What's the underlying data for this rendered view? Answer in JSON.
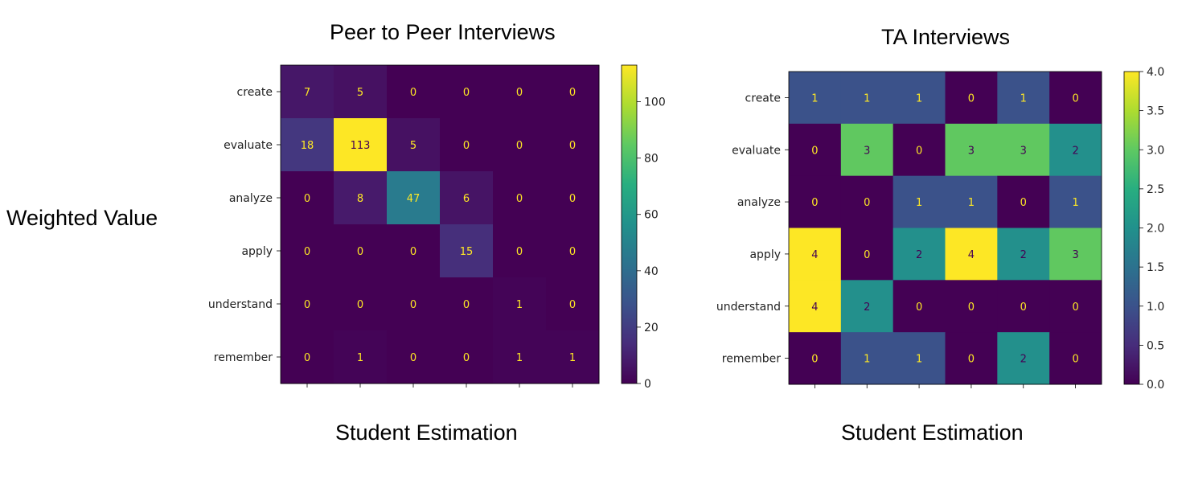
{
  "figure": {
    "ylabel": "Weighted Value"
  },
  "chart_data": [
    {
      "type": "heatmap",
      "title": "Peer to Peer Interviews",
      "xlabel": "Student Estimation",
      "row_labels": [
        "create",
        "evaluate",
        "analyze",
        "apply",
        "understand",
        "remember"
      ],
      "col_count": 6,
      "values": [
        [
          7,
          5,
          0,
          0,
          0,
          0
        ],
        [
          18,
          113,
          5,
          0,
          0,
          0
        ],
        [
          0,
          8,
          47,
          6,
          0,
          0
        ],
        [
          0,
          0,
          0,
          15,
          0,
          0
        ],
        [
          0,
          0,
          0,
          0,
          1,
          0
        ],
        [
          0,
          1,
          0,
          0,
          1,
          1
        ]
      ],
      "vmin": 0,
      "vmax": 113,
      "colormap": "viridis",
      "colorbar_ticks": [
        0,
        20,
        40,
        60,
        80,
        100
      ],
      "colorbar_tick_labels": [
        "0",
        "20",
        "40",
        "60",
        "80",
        "100"
      ]
    },
    {
      "type": "heatmap",
      "title": "TA Interviews",
      "xlabel": "Student Estimation",
      "row_labels": [
        "create",
        "evaluate",
        "analyze",
        "apply",
        "understand",
        "remember"
      ],
      "col_count": 6,
      "values": [
        [
          1,
          1,
          1,
          0,
          1,
          0
        ],
        [
          0,
          3,
          0,
          3,
          3,
          2
        ],
        [
          0,
          0,
          1,
          1,
          0,
          1
        ],
        [
          4,
          0,
          2,
          4,
          2,
          3
        ],
        [
          4,
          2,
          0,
          0,
          0,
          0
        ],
        [
          0,
          1,
          1,
          0,
          2,
          0
        ]
      ],
      "vmin": 0,
      "vmax": 4,
      "colormap": "viridis",
      "colorbar_ticks": [
        0,
        0.5,
        1,
        1.5,
        2,
        2.5,
        3,
        3.5,
        4
      ],
      "colorbar_tick_labels": [
        "0.0",
        "0.5",
        "1.0",
        "1.5",
        "2.0",
        "2.5",
        "3.0",
        "3.5",
        "4.0"
      ]
    }
  ]
}
